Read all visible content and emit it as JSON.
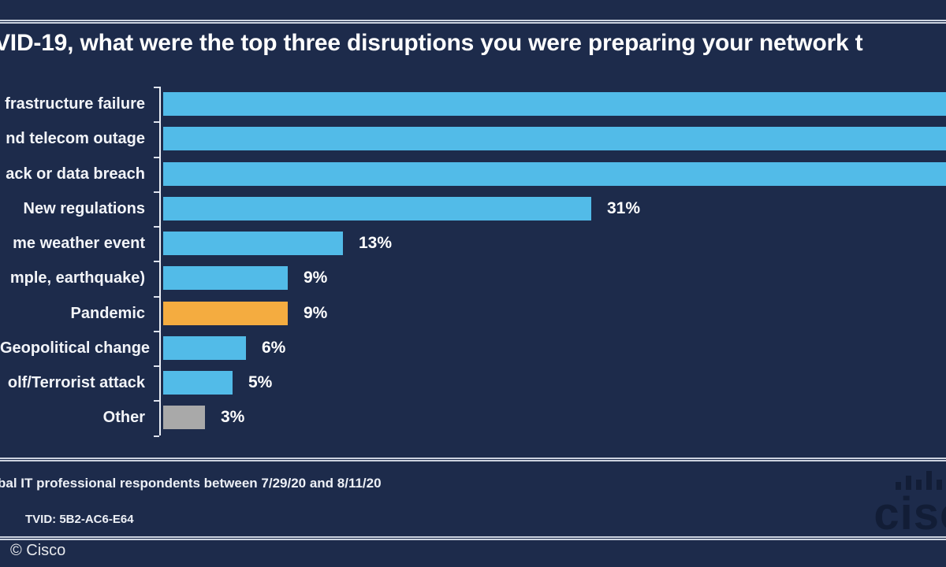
{
  "chart_data": {
    "type": "bar",
    "orientation": "horizontal",
    "title": "VID-19, what were the top three disruptions you were preparing your network t",
    "categories": [
      "frastructure failure",
      "nd telecom outage",
      "ack or data breach",
      "New regulations",
      "me weather event",
      "mple, earthquake)",
      "Pandemic",
      "Geopolitical change",
      "olf/Terrorist attack",
      "Other"
    ],
    "values": [
      null,
      null,
      null,
      31,
      13,
      9,
      9,
      6,
      5,
      3
    ],
    "value_labels": [
      "",
      "",
      "",
      "31%",
      "13%",
      "9%",
      "9%",
      "6%",
      "5%",
      "3%"
    ],
    "cut_off_at_right": [
      true,
      true,
      true,
      false,
      false,
      false,
      false,
      false,
      false,
      false
    ],
    "bar_colors": [
      "#52BBE8",
      "#52BBE8",
      "#52BBE8",
      "#52BBE8",
      "#52BBE8",
      "#52BBE8",
      "#F4AC40",
      "#52BBE8",
      "#52BBE8",
      "#A9A9A9"
    ],
    "xlabel": "",
    "ylabel": "",
    "xlim_percent": [
      0,
      57
    ],
    "grid": false,
    "legend": false
  },
  "footer": {
    "source_line": "bal IT professional respondents between 7/29/20 and 8/11/20",
    "tvid_line": "TVID: 5B2-AC6-E64",
    "copyright": "© Cisco",
    "watermark_text": "cisco"
  },
  "colors": {
    "background": "#1D2B4B",
    "bar_blue": "#52BBE8",
    "bar_orange": "#F4AC40",
    "bar_gray": "#A9A9A9",
    "rule": "#CDD4E0",
    "axis": "#E9EDF5",
    "text": "#FFFFFF"
  }
}
